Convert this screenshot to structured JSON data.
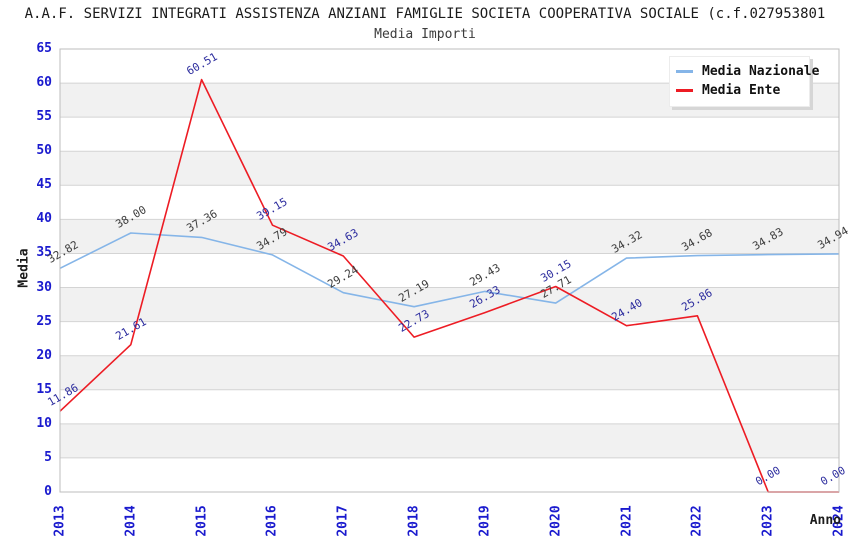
{
  "title": "A.A.F. SERVIZI INTEGRATI ASSISTENZA ANZIANI FAMIGLIE SOCIETA COOPERATIVA SOCIALE (c.f.027953801",
  "subtitle": "Media Importi",
  "axes": {
    "x_label": "Anno",
    "y_label": "Media",
    "y_ticks": [
      0,
      5,
      10,
      15,
      20,
      25,
      30,
      35,
      40,
      45,
      50,
      55,
      60,
      65
    ],
    "tick_color": "#1a1ace"
  },
  "legend": {
    "position": "top-right",
    "items": [
      {
        "label": "Media Nazionale",
        "color": "#85b5e8"
      },
      {
        "label": "Media Ente",
        "color": "#ed1c24"
      }
    ]
  },
  "colors": {
    "nazionale_line": "#85b5e8",
    "ente_line": "#ed1c24",
    "nazionale_point_label": "#3d3d3d",
    "ente_point_label": "#2c2c9e",
    "grid_line": "#d4d4d4",
    "plot_border": "#bdbdbd",
    "band_alt": "#f1f1f1"
  },
  "chart_data": {
    "type": "line",
    "title": "Media Importi",
    "xlabel": "Anno",
    "ylabel": "Media",
    "categories": [
      "2013",
      "2014",
      "2015",
      "2016",
      "2017",
      "2018",
      "2019",
      "2020",
      "2021",
      "2022",
      "2023",
      "2024"
    ],
    "series": [
      {
        "name": "Media Nazionale",
        "color": "#85b5e8",
        "label_color": "#3d3d3d",
        "values": [
          32.82,
          38.0,
          37.36,
          34.79,
          29.24,
          27.19,
          29.43,
          27.71,
          34.32,
          34.68,
          34.83,
          34.94
        ],
        "labels": [
          "32.82",
          "38.00",
          "37.36",
          "34.79",
          "29.24",
          "27.19",
          "29.43",
          "27.71",
          "34.32",
          "34.68",
          "34.83",
          "34.94"
        ]
      },
      {
        "name": "Media Ente",
        "color": "#ed1c24",
        "label_color": "#2c2c9e",
        "values": [
          11.86,
          21.61,
          60.51,
          39.15,
          34.63,
          22.73,
          26.33,
          30.15,
          24.4,
          25.86,
          0.0,
          0.0
        ],
        "labels": [
          "11.86",
          "21.61",
          "60.51",
          "39.15",
          "34.63",
          "22.73",
          "26.33",
          "30.15",
          "24.40",
          "25.86",
          "0.00",
          "0.00"
        ]
      }
    ],
    "ylim": [
      0,
      65
    ],
    "ytick_step": 5,
    "grid": true,
    "banded_background": true,
    "legend_position": "top-right"
  }
}
